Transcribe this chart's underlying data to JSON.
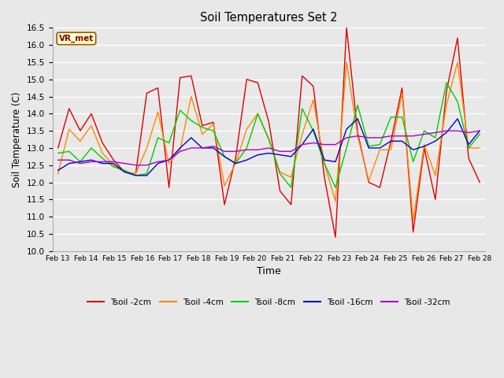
{
  "title": "Soil Temperatures Set 2",
  "xlabel": "Time",
  "ylabel": "Soil Temperature (C)",
  "ylim": [
    10.0,
    16.5
  ],
  "bg_color": "#e8e8e8",
  "grid_color": "#ffffff",
  "legend_label": "VR_met",
  "series": {
    "Tsoil -2cm": {
      "color": "#dd0000",
      "data": [
        13.0,
        14.15,
        13.5,
        14.0,
        13.15,
        12.65,
        12.3,
        12.25,
        14.6,
        14.75,
        11.85,
        15.05,
        15.1,
        13.65,
        13.75,
        11.35,
        12.7,
        15.0,
        14.9,
        13.75,
        11.75,
        11.35,
        15.1,
        14.8,
        12.15,
        10.4,
        16.5,
        13.45,
        12.0,
        11.85,
        13.2,
        14.75,
        10.55,
        13.0,
        11.5,
        14.65,
        16.2,
        12.7,
        12.0
      ]
    },
    "Tsoil -4cm": {
      "color": "#ff8800",
      "data": [
        12.25,
        13.55,
        13.2,
        13.65,
        12.85,
        12.5,
        12.3,
        12.25,
        13.0,
        14.05,
        12.55,
        12.95,
        14.5,
        13.4,
        13.7,
        11.9,
        12.55,
        13.55,
        14.0,
        13.25,
        12.3,
        12.15,
        13.4,
        14.4,
        12.55,
        11.45,
        15.5,
        13.35,
        12.05,
        12.95,
        12.95,
        14.6,
        10.9,
        13.1,
        12.2,
        14.25,
        15.5,
        13.0,
        13.0
      ]
    },
    "Tsoil -8cm": {
      "color": "#00cc00",
      "data": [
        12.85,
        12.9,
        12.6,
        13.0,
        12.7,
        12.45,
        12.35,
        12.2,
        12.25,
        13.3,
        13.15,
        14.1,
        13.8,
        13.6,
        13.5,
        12.75,
        12.55,
        13.0,
        14.0,
        13.25,
        12.25,
        11.85,
        14.15,
        13.5,
        12.55,
        11.85,
        13.0,
        14.25,
        13.05,
        13.1,
        13.9,
        13.9,
        12.6,
        13.5,
        13.3,
        14.9,
        14.35,
        13.0,
        13.4
      ]
    },
    "Tsoil -16cm": {
      "color": "#0000cc",
      "data": [
        12.35,
        12.55,
        12.6,
        12.65,
        12.55,
        12.55,
        12.3,
        12.2,
        12.2,
        12.55,
        12.65,
        13.0,
        13.3,
        13.0,
        13.0,
        12.75,
        12.55,
        12.65,
        12.8,
        12.85,
        12.8,
        12.75,
        13.1,
        13.55,
        12.65,
        12.6,
        13.55,
        13.85,
        13.0,
        13.0,
        13.2,
        13.2,
        12.95,
        13.05,
        13.2,
        13.45,
        13.85,
        13.1,
        13.5
      ]
    },
    "Tsoil -32cm": {
      "color": "#aa00cc",
      "data": [
        12.65,
        12.65,
        12.55,
        12.6,
        12.6,
        12.6,
        12.55,
        12.5,
        12.5,
        12.6,
        12.65,
        12.9,
        13.0,
        13.0,
        13.05,
        12.9,
        12.9,
        12.95,
        12.95,
        13.0,
        12.9,
        12.9,
        13.1,
        13.15,
        13.1,
        13.1,
        13.3,
        13.35,
        13.3,
        13.3,
        13.35,
        13.35,
        13.35,
        13.4,
        13.45,
        13.5,
        13.5,
        13.45,
        13.5
      ]
    }
  },
  "xtick_labels": [
    "Feb 13",
    "Feb 14",
    "Feb 15",
    "Feb 16",
    "Feb 17",
    "Feb 18",
    "Feb 19",
    "Feb 20",
    "Feb 21",
    "Feb 22",
    "Feb 23",
    "Feb 24",
    "Feb 25",
    "Feb 26",
    "Feb 27",
    "Feb 28"
  ],
  "n_days": 16
}
